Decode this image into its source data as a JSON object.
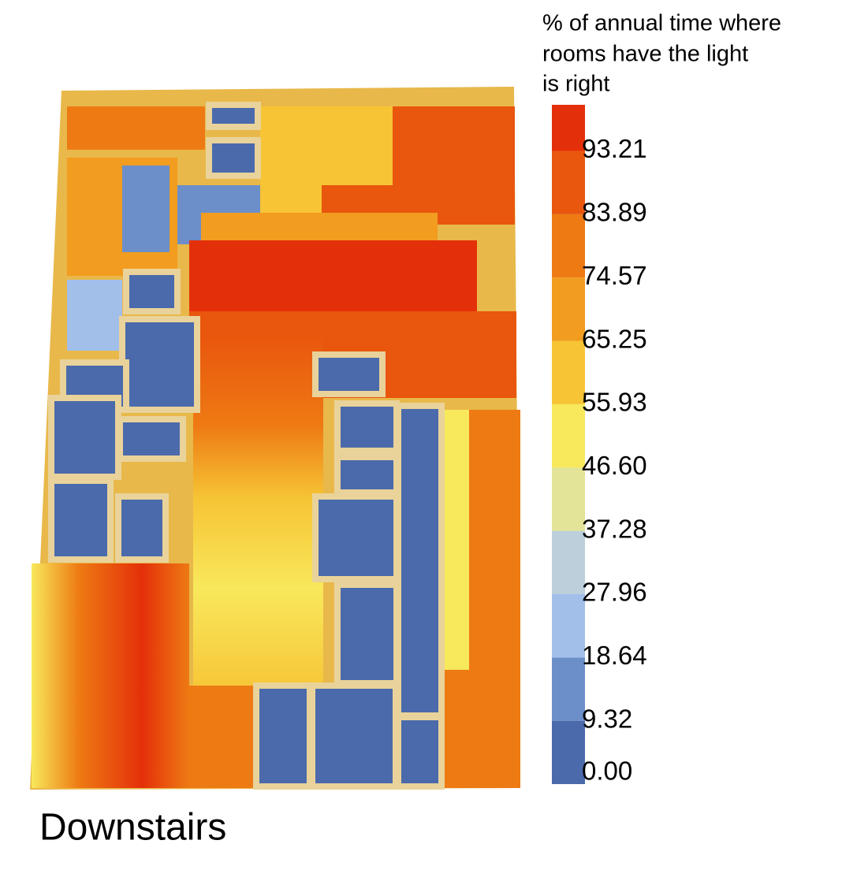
{
  "chart_data": {
    "type": "heatmap-legend",
    "title": [
      "% of annual time where",
      "rooms have the light",
      "is right"
    ],
    "label": "Downstairs",
    "ylim": [
      0,
      100
    ],
    "yticks": [
      {
        "value": 0,
        "label": "0.00"
      },
      9.32,
      18.64,
      27.96,
      37.28,
      {
        "value": 46.6,
        "label": "46.60"
      },
      55.93,
      65.25,
      74.57,
      83.89,
      93.21
    ],
    "colors": [
      "#4b6aab",
      "#6c8fc9",
      "#a2bfea",
      "#bccfdb",
      "#e3e497",
      "#f8e85b",
      "#f6c435",
      "#f29c20",
      "#ee7a13",
      "#e9560e",
      "#e4300a"
    ]
  }
}
